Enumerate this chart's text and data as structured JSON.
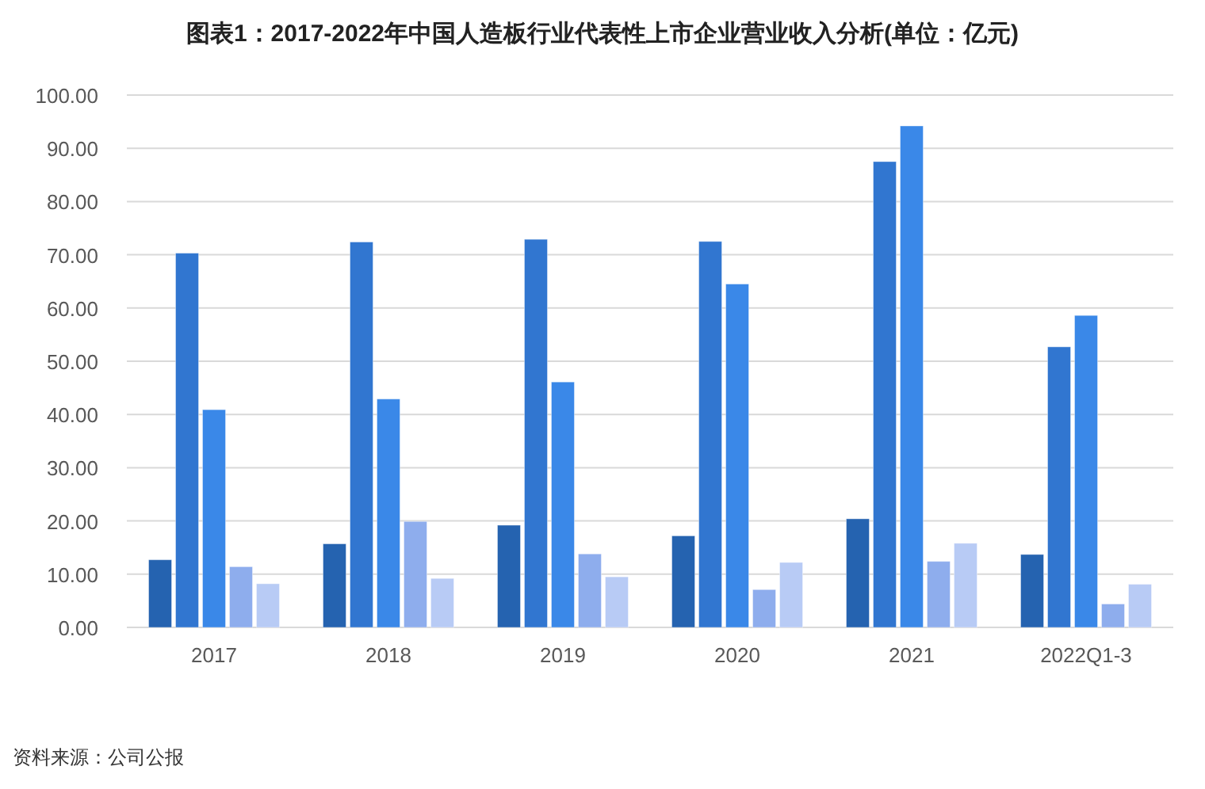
{
  "chart_data": {
    "type": "bar",
    "title": "图表1：2017-2022年中国人造板行业代表性上市企业营业收入分析(单位：亿元)",
    "categories": [
      "2017",
      "2018",
      "2019",
      "2020",
      "2021",
      "2022Q1-3"
    ],
    "series": [
      {
        "color": "#2563b0",
        "values": [
          12.7,
          15.7,
          19.2,
          17.2,
          20.4,
          13.7
        ]
      },
      {
        "color": "#3176d0",
        "values": [
          70.3,
          72.4,
          72.9,
          72.5,
          87.5,
          52.7
        ]
      },
      {
        "color": "#3a88e8",
        "values": [
          40.9,
          42.9,
          46.1,
          64.5,
          94.2,
          58.6
        ]
      },
      {
        "color": "#8eaded",
        "values": [
          11.4,
          19.9,
          13.8,
          7.1,
          12.4,
          4.4
        ]
      },
      {
        "color": "#b8cbf5",
        "values": [
          8.2,
          9.2,
          9.5,
          12.2,
          15.8,
          8.1
        ]
      }
    ],
    "ylim": [
      0,
      100
    ],
    "yticks": [
      {
        "value": 0,
        "label": "0.00"
      },
      {
        "value": 10,
        "label": "10.00"
      },
      {
        "value": 20,
        "label": "20.00"
      },
      {
        "value": 30,
        "label": "30.00"
      },
      {
        "value": 40,
        "label": "40.00"
      },
      {
        "value": 50,
        "label": "50.00"
      },
      {
        "value": 60,
        "label": "60.00"
      },
      {
        "value": 70,
        "label": "70.00"
      },
      {
        "value": 80,
        "label": "80.00"
      },
      {
        "value": 90,
        "label": "90.00"
      },
      {
        "value": 100,
        "label": "100.00"
      }
    ],
    "grid": "y",
    "annotations": [
      "资料来源：公司公报"
    ]
  }
}
